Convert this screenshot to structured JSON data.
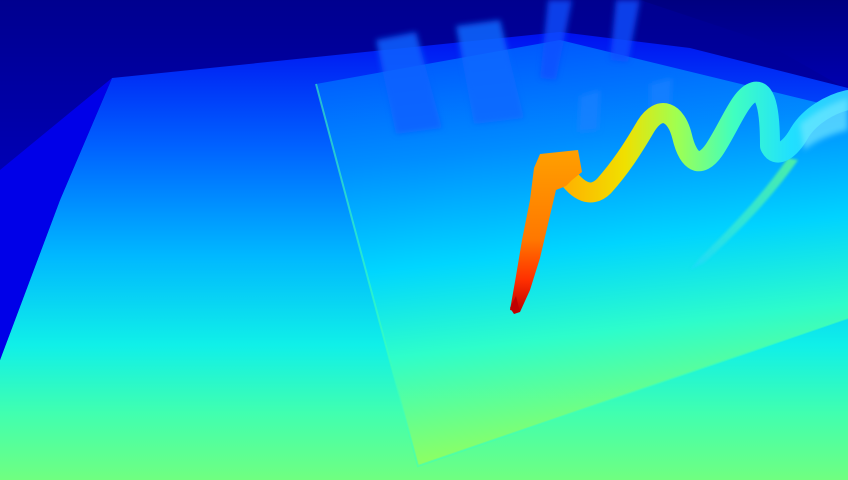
{
  "image": {
    "kind": "depth-map",
    "colormap": "jet",
    "colors": {
      "far": "#00008f",
      "far_mid": "#0000ff",
      "mid": "#0080ff",
      "near_mid": "#20ffd0",
      "near": "#80ff70",
      "close": "#ffa500",
      "closest": "#c00000"
    }
  }
}
